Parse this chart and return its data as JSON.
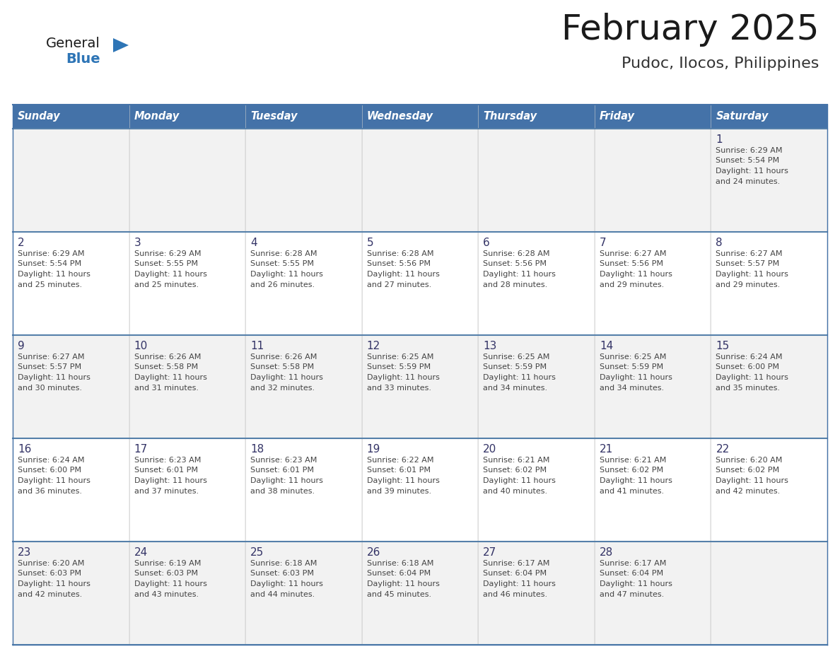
{
  "title": "February 2025",
  "subtitle": "Pudoc, Ilocos, Philippines",
  "days_of_week": [
    "Sunday",
    "Monday",
    "Tuesday",
    "Wednesday",
    "Thursday",
    "Friday",
    "Saturday"
  ],
  "header_bg": "#4472a8",
  "header_text": "#ffffff",
  "cell_bg_odd": "#f2f2f2",
  "cell_bg_even": "#ffffff",
  "border_color": "#4472a8",
  "row_border_color": "#5580aa",
  "text_color": "#444444",
  "day_num_color": "#333366",
  "title_color": "#1a1a1a",
  "subtitle_color": "#333333",
  "logo_general_color": "#1a1a1a",
  "logo_blue_color": "#2e75b6",
  "logo_triangle_color": "#2e75b6",
  "calendar_data": [
    [
      null,
      null,
      null,
      null,
      null,
      null,
      {
        "day": 1,
        "sunrise": "6:29 AM",
        "sunset": "5:54 PM",
        "daylight": "11 hours and 24 minutes."
      }
    ],
    [
      {
        "day": 2,
        "sunrise": "6:29 AM",
        "sunset": "5:54 PM",
        "daylight": "11 hours and 25 minutes."
      },
      {
        "day": 3,
        "sunrise": "6:29 AM",
        "sunset": "5:55 PM",
        "daylight": "11 hours and 25 minutes."
      },
      {
        "day": 4,
        "sunrise": "6:28 AM",
        "sunset": "5:55 PM",
        "daylight": "11 hours and 26 minutes."
      },
      {
        "day": 5,
        "sunrise": "6:28 AM",
        "sunset": "5:56 PM",
        "daylight": "11 hours and 27 minutes."
      },
      {
        "day": 6,
        "sunrise": "6:28 AM",
        "sunset": "5:56 PM",
        "daylight": "11 hours and 28 minutes."
      },
      {
        "day": 7,
        "sunrise": "6:27 AM",
        "sunset": "5:56 PM",
        "daylight": "11 hours and 29 minutes."
      },
      {
        "day": 8,
        "sunrise": "6:27 AM",
        "sunset": "5:57 PM",
        "daylight": "11 hours and 29 minutes."
      }
    ],
    [
      {
        "day": 9,
        "sunrise": "6:27 AM",
        "sunset": "5:57 PM",
        "daylight": "11 hours and 30 minutes."
      },
      {
        "day": 10,
        "sunrise": "6:26 AM",
        "sunset": "5:58 PM",
        "daylight": "11 hours and 31 minutes."
      },
      {
        "day": 11,
        "sunrise": "6:26 AM",
        "sunset": "5:58 PM",
        "daylight": "11 hours and 32 minutes."
      },
      {
        "day": 12,
        "sunrise": "6:25 AM",
        "sunset": "5:59 PM",
        "daylight": "11 hours and 33 minutes."
      },
      {
        "day": 13,
        "sunrise": "6:25 AM",
        "sunset": "5:59 PM",
        "daylight": "11 hours and 34 minutes."
      },
      {
        "day": 14,
        "sunrise": "6:25 AM",
        "sunset": "5:59 PM",
        "daylight": "11 hours and 34 minutes."
      },
      {
        "day": 15,
        "sunrise": "6:24 AM",
        "sunset": "6:00 PM",
        "daylight": "11 hours and 35 minutes."
      }
    ],
    [
      {
        "day": 16,
        "sunrise": "6:24 AM",
        "sunset": "6:00 PM",
        "daylight": "11 hours and 36 minutes."
      },
      {
        "day": 17,
        "sunrise": "6:23 AM",
        "sunset": "6:01 PM",
        "daylight": "11 hours and 37 minutes."
      },
      {
        "day": 18,
        "sunrise": "6:23 AM",
        "sunset": "6:01 PM",
        "daylight": "11 hours and 38 minutes."
      },
      {
        "day": 19,
        "sunrise": "6:22 AM",
        "sunset": "6:01 PM",
        "daylight": "11 hours and 39 minutes."
      },
      {
        "day": 20,
        "sunrise": "6:21 AM",
        "sunset": "6:02 PM",
        "daylight": "11 hours and 40 minutes."
      },
      {
        "day": 21,
        "sunrise": "6:21 AM",
        "sunset": "6:02 PM",
        "daylight": "11 hours and 41 minutes."
      },
      {
        "day": 22,
        "sunrise": "6:20 AM",
        "sunset": "6:02 PM",
        "daylight": "11 hours and 42 minutes."
      }
    ],
    [
      {
        "day": 23,
        "sunrise": "6:20 AM",
        "sunset": "6:03 PM",
        "daylight": "11 hours and 42 minutes."
      },
      {
        "day": 24,
        "sunrise": "6:19 AM",
        "sunset": "6:03 PM",
        "daylight": "11 hours and 43 minutes."
      },
      {
        "day": 25,
        "sunrise": "6:18 AM",
        "sunset": "6:03 PM",
        "daylight": "11 hours and 44 minutes."
      },
      {
        "day": 26,
        "sunrise": "6:18 AM",
        "sunset": "6:04 PM",
        "daylight": "11 hours and 45 minutes."
      },
      {
        "day": 27,
        "sunrise": "6:17 AM",
        "sunset": "6:04 PM",
        "daylight": "11 hours and 46 minutes."
      },
      {
        "day": 28,
        "sunrise": "6:17 AM",
        "sunset": "6:04 PM",
        "daylight": "11 hours and 47 minutes."
      },
      null
    ]
  ]
}
